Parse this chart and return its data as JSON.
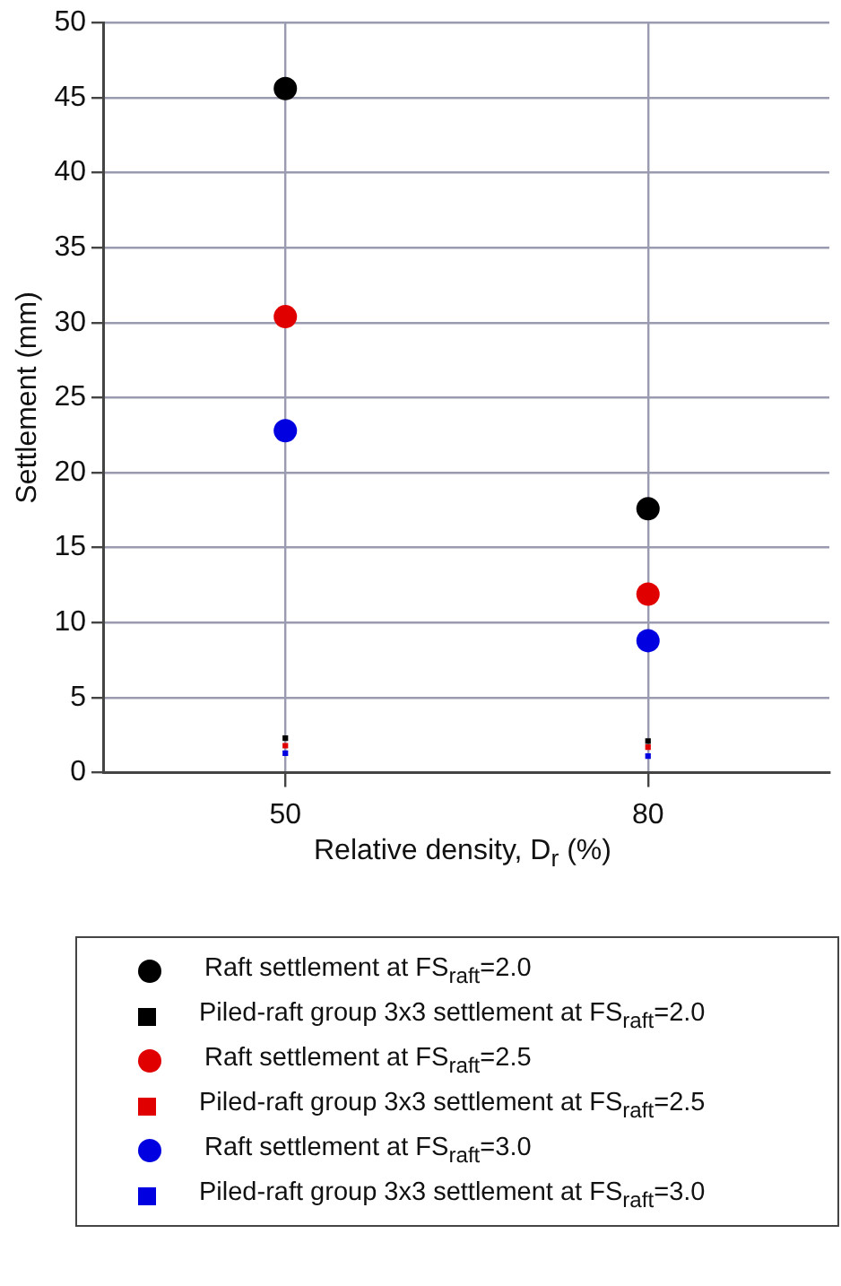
{
  "chart_data": {
    "type": "scatter",
    "xlabel": "Relative density, D$_{r}$ (%)",
    "ylabel": "Settlement (mm)",
    "categories": [
      "50",
      "80"
    ],
    "series": [
      {
        "name": "Raft settlement at FS$_{raft}$=2.0",
        "color": "#000000",
        "marker": "circle",
        "values": [
          45.6,
          17.6
        ]
      },
      {
        "name": "Piled-raft group 3x3 settlement at FS$_{raft}$=2.0",
        "color": "#000000",
        "marker": "square",
        "values": [
          2.3,
          2.1
        ]
      },
      {
        "name": "Raft settlement at FS$_{raft}$=2.5",
        "color": "#e00000",
        "marker": "circle",
        "values": [
          30.4,
          11.9
        ]
      },
      {
        "name": "Piled-raft group 3x3 settlement at FS$_{raft}$=2.5",
        "color": "#e00000",
        "marker": "square",
        "values": [
          1.8,
          1.7
        ]
      },
      {
        "name": "Raft settlement at FS$_{raft}$=3.0",
        "color": "#0000e0",
        "marker": "circle",
        "values": [
          22.8,
          8.8
        ]
      },
      {
        "name": "Piled-raft group 3x3 settlement at FS$_{raft}$=3.0",
        "color": "#0000e0",
        "marker": "square",
        "values": [
          1.3,
          1.1
        ]
      }
    ],
    "ylim": [
      0,
      50
    ],
    "yticks": [
      0,
      5,
      10,
      15,
      20,
      25,
      30,
      35,
      40,
      45,
      50
    ],
    "grid": true,
    "legend": "bottom"
  }
}
